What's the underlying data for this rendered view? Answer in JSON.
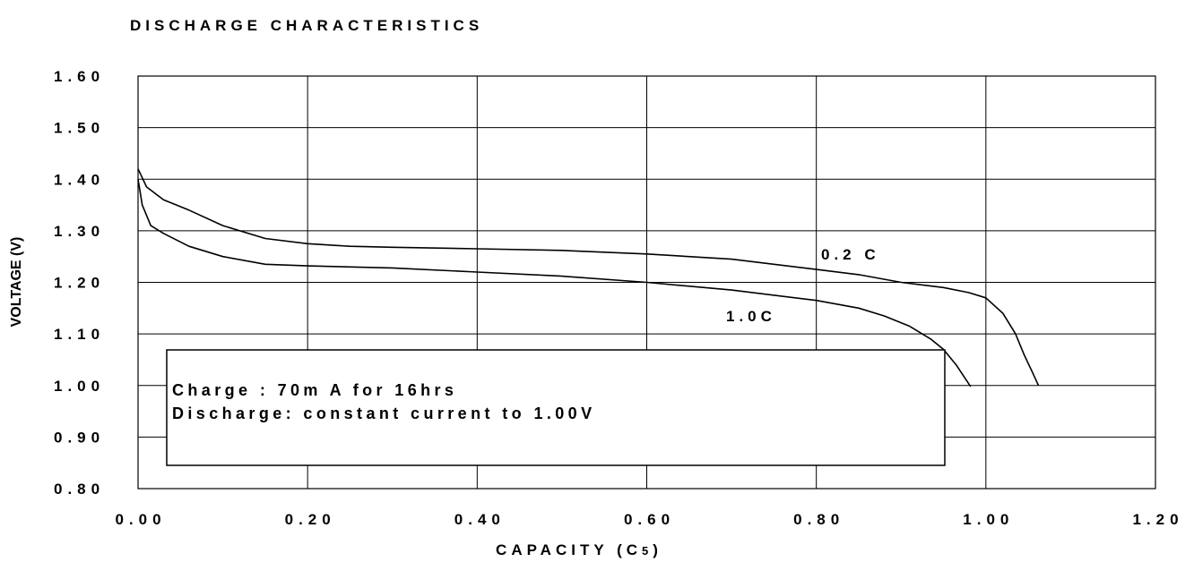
{
  "chart_data": {
    "type": "line",
    "title": "DISCHARGE CHARACTERISTICS",
    "xlabel": "CAPACITY (C",
    "xlabel_subscript": "5",
    "xlabel_close": ")",
    "ylabel": "VOLTAGE (V)",
    "xlim": [
      0,
      1.2
    ],
    "ylim": [
      0.8,
      1.6
    ],
    "grid": true,
    "x_ticks": [
      "0.00",
      "0.20",
      "0.40",
      "0.60",
      "0.80",
      "1.00",
      "1.20"
    ],
    "y_ticks": [
      "0.80",
      "0.90",
      "1.00",
      "1.10",
      "1.20",
      "1.30",
      "1.40",
      "1.50",
      "1.60"
    ],
    "series": [
      {
        "name": "0.2C",
        "x": [
          0.0,
          0.01,
          0.03,
          0.06,
          0.1,
          0.15,
          0.2,
          0.25,
          0.3,
          0.4,
          0.5,
          0.6,
          0.7,
          0.8,
          0.85,
          0.9,
          0.95,
          0.98,
          1.0,
          1.02,
          1.035,
          1.045,
          1.055,
          1.062
        ],
        "y": [
          1.42,
          1.385,
          1.36,
          1.34,
          1.31,
          1.285,
          1.275,
          1.27,
          1.268,
          1.265,
          1.262,
          1.255,
          1.245,
          1.225,
          1.215,
          1.2,
          1.19,
          1.18,
          1.17,
          1.14,
          1.1,
          1.06,
          1.025,
          1.0
        ]
      },
      {
        "name": "1.0C",
        "x": [
          0.0,
          0.005,
          0.015,
          0.03,
          0.06,
          0.1,
          0.15,
          0.2,
          0.3,
          0.4,
          0.5,
          0.6,
          0.7,
          0.8,
          0.85,
          0.88,
          0.91,
          0.935,
          0.95,
          0.965,
          0.975,
          0.982
        ],
        "y": [
          1.4,
          1.35,
          1.31,
          1.295,
          1.27,
          1.25,
          1.235,
          1.232,
          1.228,
          1.22,
          1.212,
          1.2,
          1.185,
          1.165,
          1.15,
          1.135,
          1.115,
          1.09,
          1.07,
          1.04,
          1.015,
          0.998
        ]
      }
    ],
    "annotations": [
      {
        "text": "0.2 C"
      },
      {
        "text": "1.0C"
      }
    ],
    "note_lines": [
      "Charge : 70m A for 16hrs",
      "Discharge: constant current to 1.00V"
    ]
  }
}
